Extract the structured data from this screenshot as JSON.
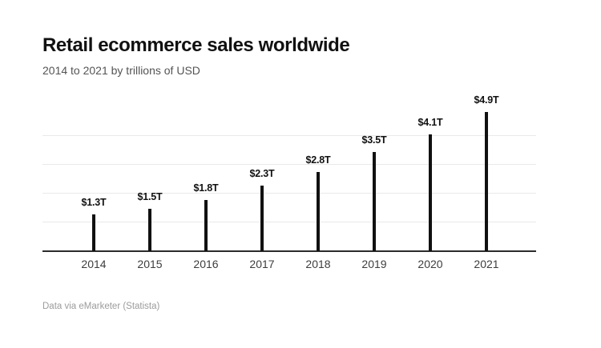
{
  "chart_data": {
    "type": "bar",
    "title": "Retail ecommerce sales worldwide",
    "subtitle": "2014 to 2021 by trillions of USD",
    "source": "Data via eMarketer (Statista)",
    "unit": "trillions of USD",
    "categories": [
      "2014",
      "2015",
      "2016",
      "2017",
      "2018",
      "2019",
      "2020",
      "2021"
    ],
    "values": [
      1.3,
      1.5,
      1.8,
      2.3,
      2.8,
      3.5,
      4.1,
      4.9
    ],
    "bar_labels": [
      "$1.3T",
      "$1.5T",
      "$1.8T",
      "$2.3T",
      "$2.8T",
      "$3.5T",
      "$4.1T",
      "$4.9T"
    ],
    "ylim": [
      0,
      5
    ],
    "gridline_values": [
      1,
      2,
      3,
      4
    ],
    "grid": true,
    "legend": false,
    "y_tick_labels_visible": false,
    "colors": {
      "bar": "#111111",
      "axis": "#2b2b2b",
      "gridline": "#e9e9e9",
      "title": "#111111",
      "subtitle": "#545454",
      "tick_label": "#3d3d3d",
      "value_label": "#111111",
      "source": "#9b9b9b",
      "background": "#ffffff"
    }
  }
}
